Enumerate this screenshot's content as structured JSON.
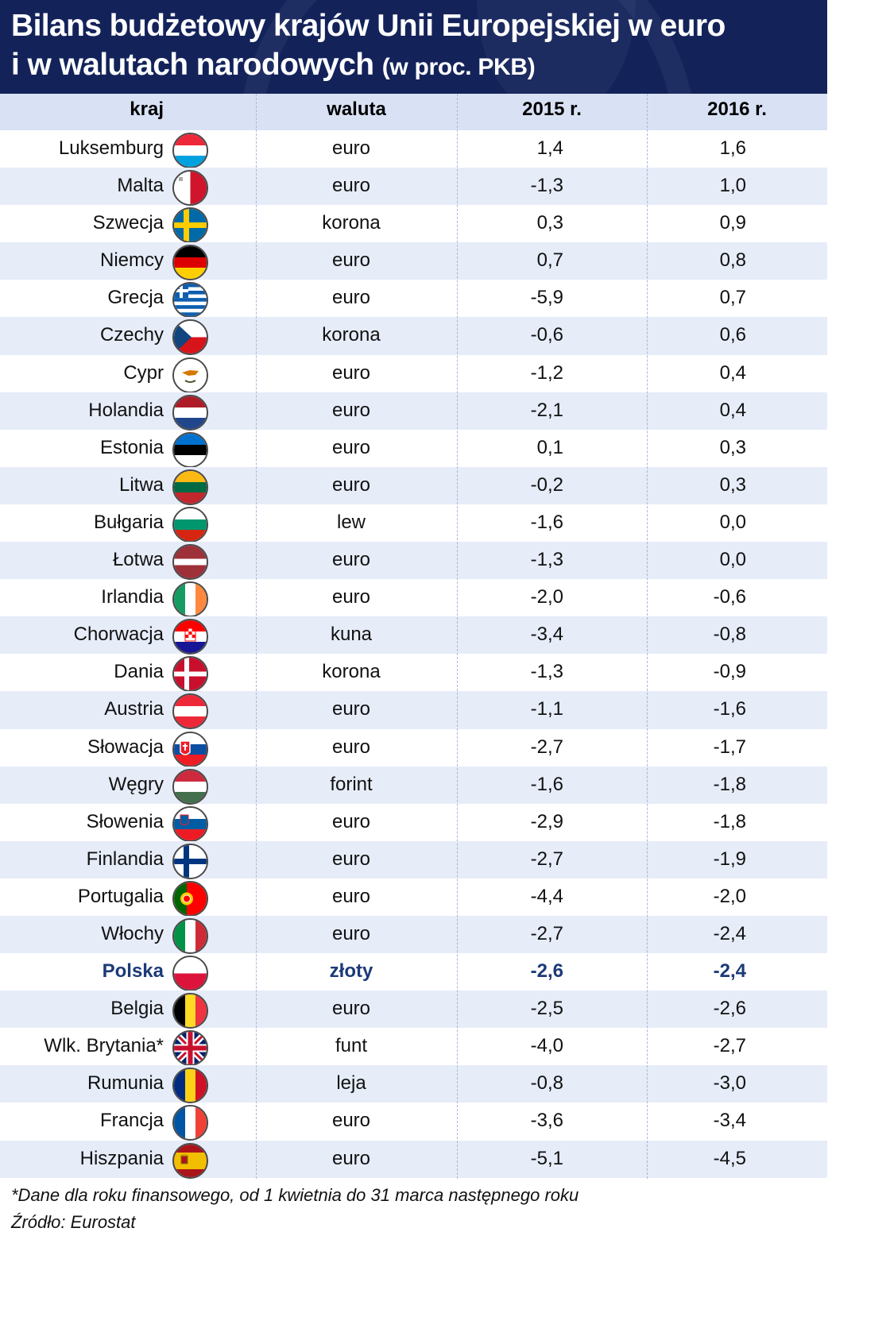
{
  "title_line1": "Bilans budżetowy krajów Unii Europejskiej w euro",
  "title_line2": "i w walutach narodowych",
  "title_unit": "(w proc. PKB)",
  "columns": {
    "kraj": "kraj",
    "waluta": "waluta",
    "y2015": "2015 r.",
    "y2016": "2016 r."
  },
  "chart_data": {
    "type": "table",
    "columns": [
      "kraj",
      "waluta",
      "2015 r.",
      "2016 r."
    ],
    "rows": [
      {
        "country": "Luksemburg",
        "currency": "euro",
        "v2015": "1,4",
        "v2016": "1,6",
        "flag": "luxembourg-flag-icon"
      },
      {
        "country": "Malta",
        "currency": "euro",
        "v2015": "-1,3",
        "v2016": "1,0",
        "flag": "malta-flag-icon"
      },
      {
        "country": "Szwecja",
        "currency": "korona",
        "v2015": "0,3",
        "v2016": "0,9",
        "flag": "sweden-flag-icon"
      },
      {
        "country": "Niemcy",
        "currency": "euro",
        "v2015": "0,7",
        "v2016": "0,8",
        "flag": "germany-flag-icon"
      },
      {
        "country": "Grecja",
        "currency": "euro",
        "v2015": "-5,9",
        "v2016": "0,7",
        "flag": "greece-flag-icon"
      },
      {
        "country": "Czechy",
        "currency": "korona",
        "v2015": "-0,6",
        "v2016": "0,6",
        "flag": "czechia-flag-icon"
      },
      {
        "country": "Cypr",
        "currency": "euro",
        "v2015": "-1,2",
        "v2016": "0,4",
        "flag": "cyprus-flag-icon"
      },
      {
        "country": "Holandia",
        "currency": "euro",
        "v2015": "-2,1",
        "v2016": "0,4",
        "flag": "netherlands-flag-icon"
      },
      {
        "country": "Estonia",
        "currency": "euro",
        "v2015": "0,1",
        "v2016": "0,3",
        "flag": "estonia-flag-icon"
      },
      {
        "country": "Litwa",
        "currency": "euro",
        "v2015": "-0,2",
        "v2016": "0,3",
        "flag": "lithuania-flag-icon"
      },
      {
        "country": "Bułgaria",
        "currency": "lew",
        "v2015": "-1,6",
        "v2016": "0,0",
        "flag": "bulgaria-flag-icon"
      },
      {
        "country": "Łotwa",
        "currency": "euro",
        "v2015": "-1,3",
        "v2016": "0,0",
        "flag": "latvia-flag-icon"
      },
      {
        "country": "Irlandia",
        "currency": "euro",
        "v2015": "-2,0",
        "v2016": "-0,6",
        "flag": "ireland-flag-icon"
      },
      {
        "country": "Chorwacja",
        "currency": "kuna",
        "v2015": "-3,4",
        "v2016": "-0,8",
        "flag": "croatia-flag-icon"
      },
      {
        "country": "Dania",
        "currency": "korona",
        "v2015": "-1,3",
        "v2016": "-0,9",
        "flag": "denmark-flag-icon"
      },
      {
        "country": "Austria",
        "currency": "euro",
        "v2015": "-1,1",
        "v2016": "-1,6",
        "flag": "austria-flag-icon"
      },
      {
        "country": "Słowacja",
        "currency": "euro",
        "v2015": "-2,7",
        "v2016": "-1,7",
        "flag": "slovakia-flag-icon"
      },
      {
        "country": "Węgry",
        "currency": "forint",
        "v2015": "-1,6",
        "v2016": "-1,8",
        "flag": "hungary-flag-icon"
      },
      {
        "country": "Słowenia",
        "currency": "euro",
        "v2015": "-2,9",
        "v2016": "-1,8",
        "flag": "slovenia-flag-icon"
      },
      {
        "country": "Finlandia",
        "currency": "euro",
        "v2015": "-2,7",
        "v2016": "-1,9",
        "flag": "finland-flag-icon"
      },
      {
        "country": "Portugalia",
        "currency": "euro",
        "v2015": "-4,4",
        "v2016": "-2,0",
        "flag": "portugal-flag-icon"
      },
      {
        "country": "Włochy",
        "currency": "euro",
        "v2015": "-2,7",
        "v2016": "-2,4",
        "flag": "italy-flag-icon"
      },
      {
        "country": "Polska",
        "currency": "złoty",
        "v2015": "-2,6",
        "v2016": "-2,4",
        "flag": "poland-flag-icon",
        "highlight": true
      },
      {
        "country": "Belgia",
        "currency": "euro",
        "v2015": "-2,5",
        "v2016": "-2,6",
        "flag": "belgium-flag-icon"
      },
      {
        "country": "Wlk. Brytania*",
        "currency": "funt",
        "v2015": "-4,0",
        "v2016": "-2,7",
        "flag": "uk-flag-icon"
      },
      {
        "country": "Rumunia",
        "currency": "leja",
        "v2015": "-0,8",
        "v2016": "-3,0",
        "flag": "romania-flag-icon"
      },
      {
        "country": "Francja",
        "currency": "euro",
        "v2015": "-3,6",
        "v2016": "-3,4",
        "flag": "france-flag-icon"
      },
      {
        "country": "Hiszpania",
        "currency": "euro",
        "v2015": "-5,1",
        "v2016": "-4,5",
        "flag": "spain-flag-icon"
      }
    ]
  },
  "colors": {
    "header_bg": "#13235a",
    "colhead_bg": "#d9e2f5",
    "row_alt": "#e6ecf8",
    "highlight": "#1c3a78"
  },
  "footnote": "*Dane dla roku finansowego, od 1 kwietnia do 31 marca następnego roku",
  "source": "Źródło: Eurostat"
}
